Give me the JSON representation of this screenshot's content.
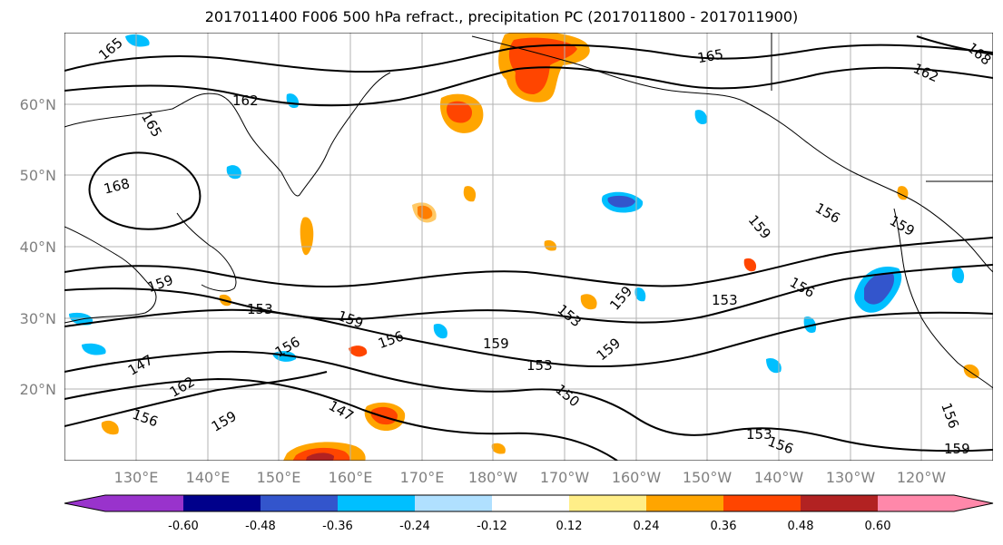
{
  "title": "2017011400 F006 500 hPa refract., precipitation PC (2017011800 - 2017011900)",
  "lat_labels": [
    "60°N",
    "50°N",
    "40°N",
    "30°N",
    "20°N"
  ],
  "lon_labels": [
    "130°E",
    "140°E",
    "150°E",
    "160°E",
    "170°E",
    "180°W",
    "170°W",
    "160°W",
    "150°W",
    "140°W",
    "130°W",
    "120°W"
  ],
  "colorbar": {
    "colors": [
      "#9933cc",
      "#00008b",
      "#3355cc",
      "#00bfff",
      "#b0e0ff",
      "#ffffff",
      "#ffee88",
      "#ffa500",
      "#ff4500",
      "#b22222",
      "#ff88aa"
    ],
    "tick_labels": [
      "-0.60",
      "-0.48",
      "-0.36",
      "-0.24",
      "-0.12",
      "0.12",
      "0.24",
      "0.36",
      "0.48",
      "0.60"
    ]
  },
  "contour_labels": [
    "165",
    "162",
    "165",
    "168",
    "165",
    "162",
    "168",
    "159",
    "153",
    "159",
    "156",
    "156",
    "147",
    "162",
    "156",
    "159",
    "159",
    "153",
    "153",
    "159",
    "159",
    "150",
    "147",
    "156",
    "159",
    "153",
    "156",
    "153",
    "156",
    "159",
    "156",
    "159"
  ]
}
